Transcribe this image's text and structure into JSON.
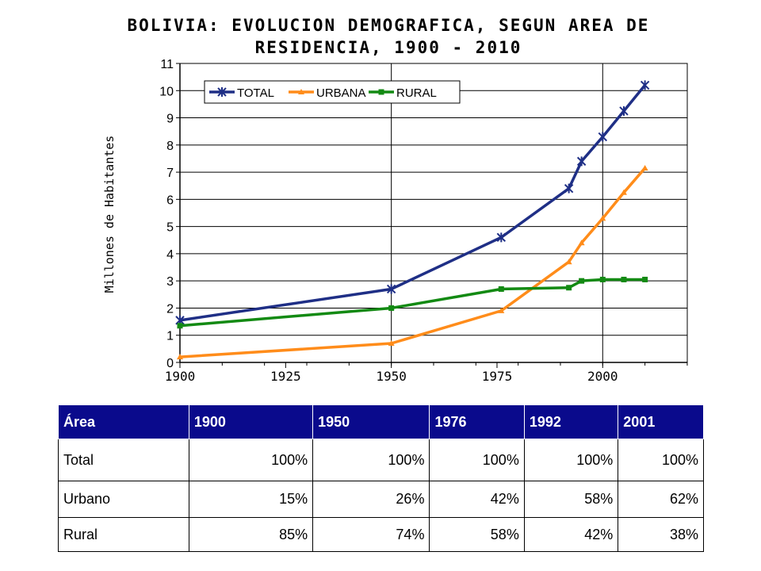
{
  "chart_data": {
    "type": "line",
    "title": "BOLIVIA:  EVOLUCION DEMOGRAFICA, SEGUN AREA DE RESIDENCIA, 1900 - 2010",
    "title_lines": [
      "BOLIVIA:  EVOLUCION DEMOGRAFICA, SEGUN AREA DE",
      "RESIDENCIA, 1900 - 2010"
    ],
    "xlabel": "",
    "ylabel": "Millones de Habitantes",
    "xlim": [
      1900,
      2010
    ],
    "ylim": [
      0,
      11
    ],
    "xticks": [
      1900,
      1925,
      1950,
      1975,
      2000
    ],
    "yticks": [
      0,
      1,
      2,
      3,
      4,
      5,
      6,
      7,
      8,
      9,
      10,
      11
    ],
    "grid": true,
    "legend_position": "top-left",
    "series": [
      {
        "name": "TOTAL",
        "color": "#1f2f86",
        "marker": "star",
        "points": [
          [
            1900,
            1.55
          ],
          [
            1950,
            2.7
          ],
          [
            1976,
            4.6
          ],
          [
            1992,
            6.4
          ],
          [
            1995,
            7.4
          ],
          [
            2000,
            8.3
          ],
          [
            2005,
            9.25
          ],
          [
            2010,
            10.2
          ]
        ]
      },
      {
        "name": "URBANA",
        "color": "#ff8c1a",
        "marker": "triangle",
        "points": [
          [
            1900,
            0.2
          ],
          [
            1950,
            0.7
          ],
          [
            1976,
            1.9
          ],
          [
            1992,
            3.7
          ],
          [
            1995,
            4.4
          ],
          [
            2000,
            5.3
          ],
          [
            2005,
            6.25
          ],
          [
            2010,
            7.15
          ]
        ]
      },
      {
        "name": "RURAL",
        "color": "#138a13",
        "marker": "square",
        "points": [
          [
            1900,
            1.35
          ],
          [
            1950,
            2.0
          ],
          [
            1976,
            2.7
          ],
          [
            1992,
            2.75
          ],
          [
            1995,
            3.0
          ],
          [
            2000,
            3.05
          ],
          [
            2005,
            3.05
          ],
          [
            2010,
            3.05
          ]
        ]
      }
    ]
  },
  "table": {
    "header": [
      "Área",
      "1900",
      "1950",
      "1976",
      "1992",
      "2001"
    ],
    "rows": [
      [
        "Total",
        "100%",
        "100%",
        "100%",
        "100%",
        "100%"
      ],
      [
        "Urbano",
        "15%",
        "26%",
        "42%",
        "58%",
        "62%"
      ],
      [
        "Rural",
        "85%",
        "74%",
        "58%",
        "42%",
        "38%"
      ]
    ]
  }
}
